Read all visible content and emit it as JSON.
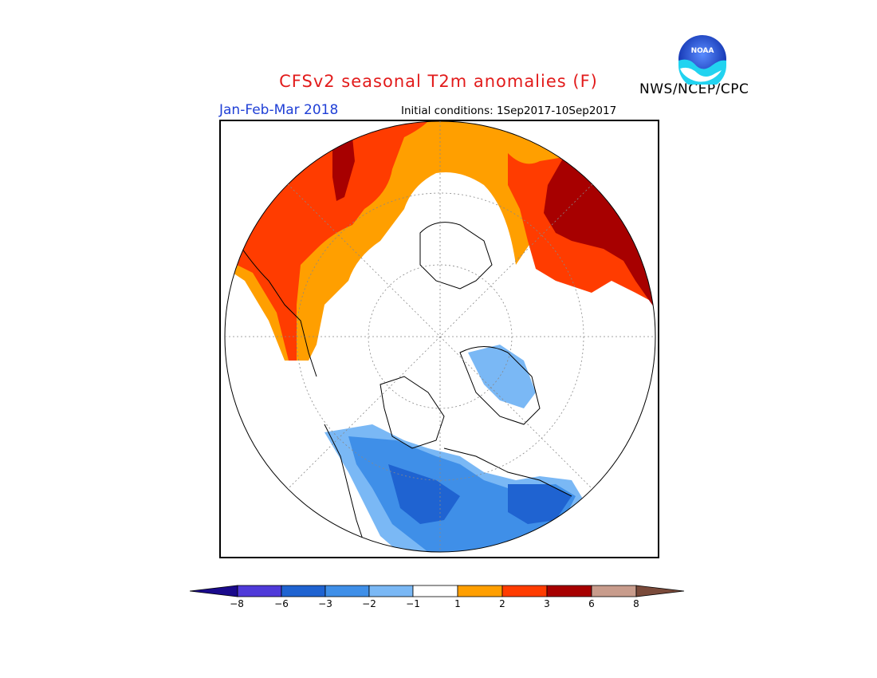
{
  "header": {
    "title": "CFSv2 seasonal T2m anomalies (F)",
    "period": "Jan-Feb-Mar 2018",
    "initial_conditions": "Initial conditions: 1Sep2017-10Sep2017",
    "agency": "NWS/NCEP/CPC",
    "logo_text": "NOAA"
  },
  "colorbar": {
    "labels": [
      "−8",
      "−6",
      "−3",
      "−2",
      "−1",
      "1",
      "2",
      "3",
      "6",
      "8"
    ],
    "colors": [
      "#1a0a8c",
      "#4f3ad9",
      "#1f63d1",
      "#3f8fe8",
      "#7ab8f5",
      "#ffffff",
      "#ff9f00",
      "#ff3c00",
      "#a70000",
      "#c89c8c",
      "#7a4a3a"
    ]
  },
  "palette": {
    "cold_light": "#7ab8f5",
    "cold_mid": "#3f8fe8",
    "cold_dark": "#1f63d1",
    "warm_light": "#ff9f00",
    "warm_mid": "#ff3c00",
    "warm_dark": "#a70000"
  }
}
